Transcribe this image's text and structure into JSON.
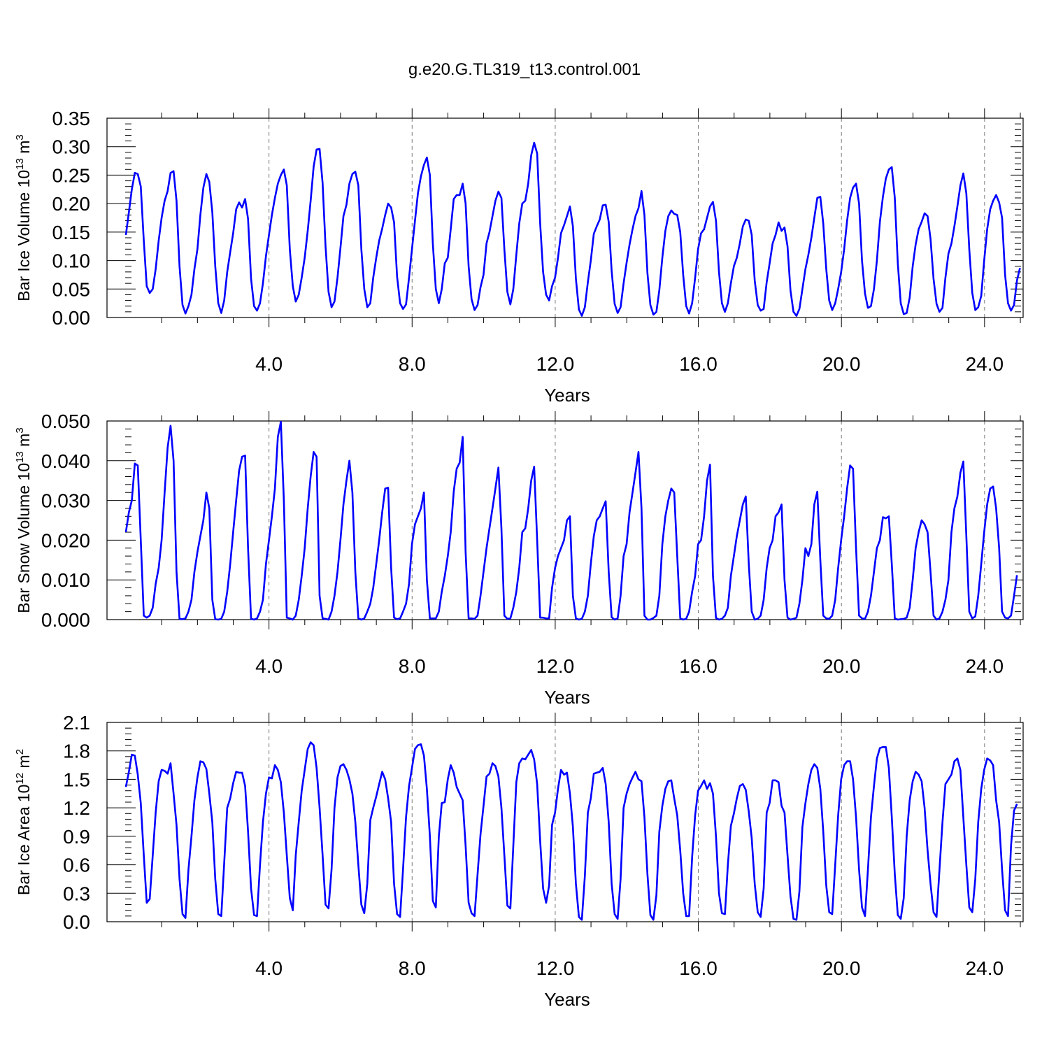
{
  "figure_title": "g.e20.G.TL319_t13.control.001",
  "chart_data": [
    {
      "type": "line",
      "ylabel": "Bar Ice Volume 10",
      "ylabel_exp": "13",
      "ylabel_unit": " m",
      "ylabel_unit_exp": "3",
      "xlabel": "Years",
      "xlim": [
        0,
        25
      ],
      "ylim": [
        0,
        0.35
      ],
      "x_ticks": [
        4,
        8,
        12,
        16,
        20,
        24
      ],
      "x_tick_labels": [
        "4.0",
        "8.0",
        "12.0",
        "16.0",
        "20.0",
        "24.0"
      ],
      "y_ticks": [
        0,
        0.05,
        0.1,
        0.15,
        0.2,
        0.25,
        0.3,
        0.35
      ],
      "y_tick_labels": [
        "0.00",
        "0.05",
        "0.10",
        "0.15",
        "0.20",
        "0.25",
        "0.30",
        "0.35"
      ],
      "x_start": 0.0,
      "x_step": 0.0833,
      "color": "#0000ff",
      "values": [
        0.145,
        0.185,
        0.225,
        0.254,
        0.252,
        0.23,
        0.135,
        0.055,
        0.043,
        0.05,
        0.085,
        0.135,
        0.175,
        0.205,
        0.222,
        0.254,
        0.257,
        0.205,
        0.09,
        0.022,
        0.007,
        0.02,
        0.04,
        0.085,
        0.12,
        0.18,
        0.228,
        0.252,
        0.238,
        0.185,
        0.09,
        0.025,
        0.008,
        0.03,
        0.08,
        0.115,
        0.148,
        0.19,
        0.202,
        0.193,
        0.208,
        0.173,
        0.068,
        0.02,
        0.012,
        0.025,
        0.06,
        0.108,
        0.145,
        0.18,
        0.21,
        0.235,
        0.25,
        0.26,
        0.232,
        0.12,
        0.055,
        0.028,
        0.04,
        0.07,
        0.105,
        0.152,
        0.205,
        0.265,
        0.295,
        0.296,
        0.236,
        0.125,
        0.045,
        0.018,
        0.028,
        0.07,
        0.122,
        0.178,
        0.198,
        0.235,
        0.252,
        0.256,
        0.232,
        0.12,
        0.05,
        0.018,
        0.025,
        0.07,
        0.105,
        0.135,
        0.156,
        0.18,
        0.2,
        0.193,
        0.167,
        0.072,
        0.025,
        0.015,
        0.023,
        0.07,
        0.12,
        0.17,
        0.218,
        0.248,
        0.268,
        0.281,
        0.25,
        0.13,
        0.05,
        0.025,
        0.05,
        0.095,
        0.105,
        0.155,
        0.208,
        0.215,
        0.215,
        0.235,
        0.2,
        0.09,
        0.032,
        0.013,
        0.022,
        0.053,
        0.075,
        0.13,
        0.15,
        0.178,
        0.205,
        0.221,
        0.21,
        0.12,
        0.045,
        0.023,
        0.05,
        0.11,
        0.165,
        0.2,
        0.205,
        0.235,
        0.285,
        0.307,
        0.288,
        0.165,
        0.08,
        0.04,
        0.03,
        0.055,
        0.07,
        0.105,
        0.148,
        0.162,
        0.178,
        0.195,
        0.16,
        0.068,
        0.014,
        0.003,
        0.018,
        0.062,
        0.1,
        0.147,
        0.16,
        0.172,
        0.197,
        0.198,
        0.168,
        0.082,
        0.024,
        0.008,
        0.018,
        0.06,
        0.096,
        0.128,
        0.155,
        0.178,
        0.192,
        0.222,
        0.18,
        0.078,
        0.022,
        0.005,
        0.01,
        0.048,
        0.105,
        0.152,
        0.178,
        0.188,
        0.182,
        0.18,
        0.15,
        0.075,
        0.02,
        0.007,
        0.025,
        0.07,
        0.12,
        0.148,
        0.155,
        0.175,
        0.195,
        0.203,
        0.17,
        0.08,
        0.025,
        0.01,
        0.025,
        0.06,
        0.09,
        0.105,
        0.13,
        0.16,
        0.172,
        0.17,
        0.145,
        0.065,
        0.022,
        0.012,
        0.015,
        0.062,
        0.095,
        0.13,
        0.145,
        0.167,
        0.152,
        0.158,
        0.125,
        0.048,
        0.01,
        0.003,
        0.015,
        0.05,
        0.085,
        0.11,
        0.14,
        0.175,
        0.21,
        0.212,
        0.165,
        0.085,
        0.03,
        0.013,
        0.025,
        0.05,
        0.08,
        0.12,
        0.17,
        0.21,
        0.228,
        0.235,
        0.2,
        0.1,
        0.042,
        0.017,
        0.02,
        0.05,
        0.1,
        0.168,
        0.212,
        0.244,
        0.26,
        0.264,
        0.21,
        0.095,
        0.025,
        0.006,
        0.008,
        0.035,
        0.09,
        0.128,
        0.155,
        0.168,
        0.183,
        0.178,
        0.138,
        0.068,
        0.024,
        0.01,
        0.017,
        0.07,
        0.112,
        0.13,
        0.16,
        0.195,
        0.232,
        0.253,
        0.218,
        0.12,
        0.043,
        0.013,
        0.018,
        0.038,
        0.1,
        0.155,
        0.19,
        0.205,
        0.215,
        0.202,
        0.175,
        0.075,
        0.025,
        0.012,
        0.022,
        0.065,
        0.087
      ]
    },
    {
      "type": "line",
      "ylabel": "Bar Snow Volume 10",
      "ylabel_exp": "13",
      "ylabel_unit": " m",
      "ylabel_unit_exp": "3",
      "xlabel": "Years",
      "xlim": [
        0,
        25
      ],
      "ylim": [
        0,
        0.05
      ],
      "x_ticks": [
        4,
        8,
        12,
        16,
        20,
        24
      ],
      "x_tick_labels": [
        "4.0",
        "8.0",
        "12.0",
        "16.0",
        "20.0",
        "24.0"
      ],
      "y_ticks": [
        0,
        0.01,
        0.02,
        0.03,
        0.04,
        0.05
      ],
      "y_tick_labels": [
        "0.000",
        "0.010",
        "0.020",
        "0.030",
        "0.040",
        "0.050"
      ],
      "x_start": 0.0,
      "x_step": 0.0833,
      "color": "#0000ff",
      "values": [
        0.022,
        0.027,
        0.03,
        0.0393,
        0.0388,
        0.02,
        0.001,
        0.0005,
        0.001,
        0.003,
        0.009,
        0.013,
        0.02,
        0.032,
        0.0433,
        0.0488,
        0.04,
        0.012,
        0.0002,
        0.0001,
        0.0003,
        0.002,
        0.005,
        0.012,
        0.017,
        0.021,
        0.025,
        0.032,
        0.028,
        0.005,
        0.0001,
        0.0,
        0.0002,
        0.002,
        0.007,
        0.014,
        0.022,
        0.03,
        0.0375,
        0.041,
        0.0413,
        0.018,
        0.0002,
        0.0,
        0.0003,
        0.002,
        0.005,
        0.014,
        0.02,
        0.026,
        0.033,
        0.046,
        0.0498,
        0.03,
        0.0005,
        0.0003,
        0.0,
        0.001,
        0.005,
        0.011,
        0.018,
        0.028,
        0.036,
        0.0422,
        0.041,
        0.006,
        0.0003,
        0.0002,
        0.0,
        0.002,
        0.006,
        0.012,
        0.02,
        0.029,
        0.035,
        0.04,
        0.032,
        0.012,
        0.0003,
        0.0,
        0.0003,
        0.002,
        0.004,
        0.008,
        0.014,
        0.02,
        0.027,
        0.033,
        0.0332,
        0.013,
        0.0005,
        0.0001,
        0.0003,
        0.002,
        0.004,
        0.009,
        0.019,
        0.024,
        0.026,
        0.028,
        0.032,
        0.01,
        0.0003,
        0.0003,
        0.0003,
        0.002,
        0.007,
        0.011,
        0.016,
        0.022,
        0.0322,
        0.038,
        0.0395,
        0.046,
        0.017,
        0.0003,
        0.0003,
        0.0002,
        0.001,
        0.006,
        0.012,
        0.018,
        0.023,
        0.028,
        0.033,
        0.0383,
        0.023,
        0.001,
        0.0002,
        0.0003,
        0.003,
        0.007,
        0.013,
        0.022,
        0.023,
        0.028,
        0.035,
        0.0385,
        0.02,
        0.0005,
        0.0005,
        0.0003,
        0.0003,
        0.008,
        0.013,
        0.016,
        0.018,
        0.02,
        0.025,
        0.026,
        0.006,
        0.0003,
        0.0,
        0.0002,
        0.002,
        0.006,
        0.014,
        0.021,
        0.025,
        0.026,
        0.028,
        0.0298,
        0.012,
        0.0006,
        0.0,
        0.0003,
        0.006,
        0.016,
        0.019,
        0.027,
        0.032,
        0.037,
        0.0422,
        0.028,
        0.001,
        0.0,
        0.0,
        0.0004,
        0.001,
        0.006,
        0.019,
        0.026,
        0.03,
        0.033,
        0.032,
        0.016,
        0.0003,
        0.0,
        0.0002,
        0.002,
        0.007,
        0.011,
        0.019,
        0.02,
        0.026,
        0.035,
        0.039,
        0.011,
        0.0004,
        0.0,
        0.0002,
        0.001,
        0.003,
        0.011,
        0.016,
        0.021,
        0.025,
        0.029,
        0.031,
        0.014,
        0.002,
        0.0,
        0.0002,
        0.001,
        0.005,
        0.013,
        0.018,
        0.02,
        0.026,
        0.027,
        0.029,
        0.01,
        0.0005,
        0.0,
        0.0002,
        0.0005,
        0.004,
        0.01,
        0.018,
        0.016,
        0.019,
        0.029,
        0.0322,
        0.015,
        0.001,
        0.0003,
        0.0002,
        0.001,
        0.005,
        0.013,
        0.02,
        0.026,
        0.033,
        0.0388,
        0.038,
        0.018,
        0.001,
        0.0003,
        0.0002,
        0.002,
        0.006,
        0.012,
        0.018,
        0.02,
        0.0258,
        0.0255,
        0.026,
        0.014,
        0.0003,
        0.0,
        0.0001,
        0.0002,
        0.0005,
        0.003,
        0.01,
        0.018,
        0.022,
        0.025,
        0.024,
        0.022,
        0.012,
        0.001,
        0.0,
        0.0003,
        0.002,
        0.005,
        0.01,
        0.022,
        0.028,
        0.031,
        0.037,
        0.0398,
        0.021,
        0.002,
        0.0003,
        0.0008,
        0.006,
        0.014,
        0.022,
        0.029,
        0.033,
        0.0335,
        0.028,
        0.018,
        0.002,
        0.0005,
        0.0003,
        0.001,
        0.006,
        0.0112
      ]
    },
    {
      "type": "line",
      "ylabel": "Bar Ice Area 10",
      "ylabel_exp": "12",
      "ylabel_unit": " m",
      "ylabel_unit_exp": "2",
      "xlabel": "Years",
      "xlim": [
        0,
        25
      ],
      "ylim": [
        0,
        2.1
      ],
      "x_ticks": [
        4,
        8,
        12,
        16,
        20,
        24
      ],
      "x_tick_labels": [
        "4.0",
        "8.0",
        "12.0",
        "16.0",
        "20.0",
        "24.0"
      ],
      "y_ticks": [
        0,
        0.3,
        0.6,
        0.9,
        1.2,
        1.5,
        1.8,
        2.1
      ],
      "y_tick_labels": [
        "0.0",
        "0.3",
        "0.6",
        "0.9",
        "1.2",
        "1.5",
        "1.8",
        "2.1"
      ],
      "x_start": 0.0,
      "x_step": 0.0833,
      "color": "#0000ff",
      "values": [
        1.42,
        1.58,
        1.76,
        1.75,
        1.55,
        1.25,
        0.7,
        0.2,
        0.24,
        0.7,
        1.15,
        1.48,
        1.6,
        1.59,
        1.56,
        1.67,
        1.35,
        1.02,
        0.45,
        0.08,
        0.04,
        0.55,
        0.9,
        1.28,
        1.52,
        1.69,
        1.68,
        1.61,
        1.35,
        1.05,
        0.45,
        0.08,
        0.06,
        0.62,
        1.2,
        1.3,
        1.46,
        1.58,
        1.57,
        1.57,
        1.43,
        0.95,
        0.35,
        0.07,
        0.06,
        0.6,
        1.05,
        1.35,
        1.52,
        1.51,
        1.65,
        1.6,
        1.47,
        1.15,
        0.7,
        0.25,
        0.12,
        0.7,
        1.05,
        1.38,
        1.6,
        1.82,
        1.89,
        1.86,
        1.62,
        1.2,
        0.7,
        0.18,
        0.14,
        0.55,
        1.2,
        1.52,
        1.64,
        1.66,
        1.6,
        1.5,
        1.35,
        1.05,
        0.6,
        0.18,
        0.09,
        0.4,
        1.07,
        1.2,
        1.32,
        1.45,
        1.58,
        1.5,
        1.3,
        1.05,
        0.4,
        0.08,
        0.05,
        0.55,
        1.1,
        1.43,
        1.62,
        1.82,
        1.86,
        1.87,
        1.75,
        1.4,
        0.9,
        0.22,
        0.15,
        0.9,
        1.25,
        1.26,
        1.5,
        1.65,
        1.57,
        1.42,
        1.35,
        1.28,
        0.8,
        0.2,
        0.09,
        0.06,
        0.5,
        0.92,
        1.22,
        1.53,
        1.56,
        1.67,
        1.64,
        1.53,
        1.2,
        0.7,
        0.17,
        0.14,
        0.8,
        1.47,
        1.67,
        1.72,
        1.71,
        1.76,
        1.81,
        1.71,
        1.45,
        0.85,
        0.35,
        0.2,
        0.38,
        1.02,
        1.15,
        1.4,
        1.6,
        1.55,
        1.57,
        1.35,
        1.0,
        0.4,
        0.05,
        0.02,
        0.48,
        1.15,
        1.3,
        1.56,
        1.57,
        1.58,
        1.62,
        1.45,
        1.05,
        0.4,
        0.08,
        0.03,
        0.45,
        1.2,
        1.35,
        1.45,
        1.52,
        1.58,
        1.5,
        1.48,
        1.1,
        0.5,
        0.07,
        0.02,
        0.28,
        0.95,
        1.22,
        1.4,
        1.48,
        1.49,
        1.3,
        1.12,
        0.75,
        0.3,
        0.06,
        0.06,
        0.68,
        1.12,
        1.38,
        1.43,
        1.49,
        1.4,
        1.46,
        1.35,
        0.9,
        0.3,
        0.09,
        0.08,
        0.6,
        1.01,
        1.14,
        1.3,
        1.43,
        1.45,
        1.39,
        1.16,
        0.88,
        0.4,
        0.1,
        0.05,
        0.35,
        1.15,
        1.25,
        1.49,
        1.49,
        1.47,
        1.22,
        1.15,
        0.7,
        0.27,
        0.03,
        0.02,
        0.32,
        1.0,
        1.25,
        1.45,
        1.6,
        1.66,
        1.62,
        1.4,
        0.95,
        0.38,
        0.1,
        0.08,
        0.6,
        1.12,
        1.5,
        1.65,
        1.69,
        1.69,
        1.5,
        1.1,
        0.55,
        0.15,
        0.06,
        0.55,
        1.1,
        1.43,
        1.72,
        1.83,
        1.84,
        1.84,
        1.62,
        1.1,
        0.5,
        0.07,
        0.03,
        0.25,
        0.9,
        1.28,
        1.48,
        1.58,
        1.55,
        1.48,
        1.2,
        0.75,
        0.4,
        0.1,
        0.05,
        0.55,
        1.05,
        1.45,
        1.5,
        1.55,
        1.69,
        1.72,
        1.6,
        1.1,
        0.6,
        0.15,
        0.1,
        0.45,
        1.05,
        1.4,
        1.6,
        1.72,
        1.7,
        1.65,
        1.28,
        1.05,
        0.55,
        0.12,
        0.06,
        0.8,
        1.17,
        1.24
      ]
    }
  ]
}
